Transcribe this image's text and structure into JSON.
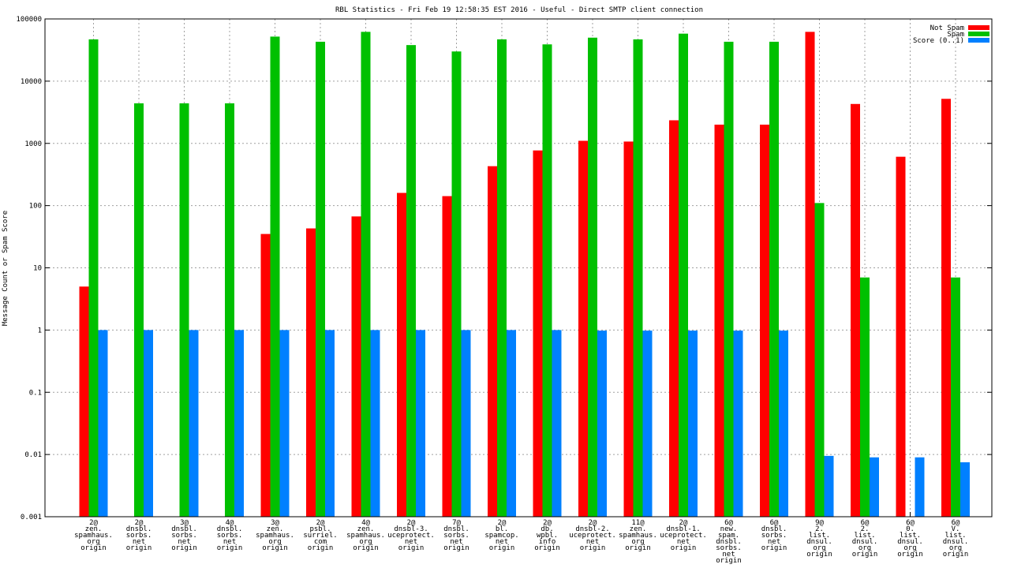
{
  "chart_data": {
    "type": "bar",
    "title": "RBL Statistics - Fri Feb 19 12:58:35 EST 2016 - Useful - Direct SMTP client connection",
    "xlabel": "",
    "ylabel": "Message Count or Spam Score",
    "yscale": "log",
    "ylim": [
      0.001,
      100000
    ],
    "yticks": [
      "0.001",
      "0.01",
      "0.1",
      "1",
      "10",
      "100",
      "1000",
      "10000",
      "100000"
    ],
    "grid": true,
    "legend_position": "top-right",
    "categories": [
      [
        "2@",
        "zen.",
        "spamhaus.",
        "org",
        "origin"
      ],
      [
        "2@",
        "dnsbl.",
        "sorbs.",
        "net",
        "origin"
      ],
      [
        "3@",
        "dnsbl.",
        "sorbs.",
        "net",
        "origin"
      ],
      [
        "4@",
        "dnsbl.",
        "sorbs.",
        "net",
        "origin"
      ],
      [
        "3@",
        "zen.",
        "spamhaus.",
        "org",
        "origin"
      ],
      [
        "2@",
        "psbl.",
        "surriel.",
        "com",
        "origin"
      ],
      [
        "4@",
        "zen.",
        "spamhaus.",
        "org",
        "origin"
      ],
      [
        "2@",
        "dnsbl-3.",
        "uceprotect.",
        "net",
        "origin"
      ],
      [
        "7@",
        "dnsbl.",
        "sorbs.",
        "net",
        "origin"
      ],
      [
        "2@",
        "bl.",
        "spamcop.",
        "net",
        "origin"
      ],
      [
        "2@",
        "db.",
        "wpbl.",
        "info",
        "origin"
      ],
      [
        "2@",
        "dnsbl-2.",
        "uceprotect.",
        "net",
        "origin"
      ],
      [
        "11@",
        "zen.",
        "spamhaus.",
        "org",
        "origin"
      ],
      [
        "2@",
        "dnsbl-1.",
        "uceprotect.",
        "net",
        "origin"
      ],
      [
        "6@",
        "new.",
        "spam.",
        "dnsbl.",
        "sorbs.",
        "net",
        "origin"
      ],
      [
        "6@",
        "dnsbl.",
        "sorbs.",
        "net",
        "origin"
      ],
      [
        "9@",
        "2.",
        "list.",
        "dnsul.",
        "org",
        "origin"
      ],
      [
        "6@",
        "2.",
        "list.",
        "dnsul.",
        "org",
        "origin"
      ],
      [
        "6@",
        "0.",
        "list.",
        "dnsul.",
        "org",
        "origin"
      ],
      [
        "6@",
        "V.",
        "list.",
        "dnsul.",
        "org",
        "origin"
      ]
    ],
    "series": [
      {
        "name": "Not Spam",
        "color": "#ff0000",
        "values": [
          5,
          null,
          null,
          null,
          35,
          43,
          67,
          160,
          142,
          430,
          770,
          1100,
          1070,
          2350,
          2000,
          2000,
          62000,
          4300,
          610,
          5200
        ]
      },
      {
        "name": "Spam",
        "color": "#00c000",
        "values": [
          47000,
          4400,
          4400,
          4400,
          52000,
          43000,
          62000,
          38000,
          30000,
          47000,
          39000,
          50000,
          47000,
          58000,
          43000,
          43000,
          110,
          7,
          null,
          7
        ]
      },
      {
        "name": "Score (0..1)",
        "color": "#0080ff",
        "values": [
          1,
          1,
          1,
          1,
          1,
          1,
          1,
          1,
          1,
          1,
          1,
          0.98,
          0.98,
          0.98,
          0.98,
          0.98,
          0.0095,
          0.009,
          0.009,
          0.0075
        ]
      }
    ]
  }
}
